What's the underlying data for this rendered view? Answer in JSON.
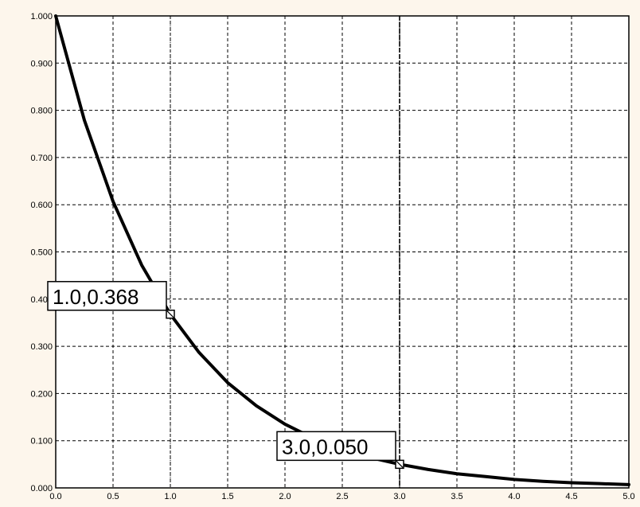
{
  "chart_data": {
    "type": "line",
    "title": "",
    "xlabel": "",
    "ylabel": "",
    "xlim": [
      0.0,
      5.0
    ],
    "ylim": [
      0.0,
      1.0
    ],
    "x_ticks": [
      "0.0",
      "0.5",
      "1.0",
      "1.5",
      "2.0",
      "2.5",
      "3.0",
      "3.5",
      "4.0",
      "4.5",
      "5.0"
    ],
    "y_ticks": [
      "0.000",
      "0.100",
      "0.200",
      "0.300",
      "0.400",
      "0.500",
      "0.600",
      "0.700",
      "0.800",
      "0.900",
      "1.000"
    ],
    "grid": true,
    "legend": "none",
    "series": [
      {
        "x": [
          0.0,
          0.25,
          0.5,
          0.75,
          1.0,
          1.25,
          1.5,
          1.75,
          2.0,
          2.25,
          2.5,
          2.75,
          3.0,
          3.25,
          3.5,
          3.75,
          4.0,
          4.25,
          4.5,
          4.75,
          5.0
        ],
        "y": [
          1.0,
          0.779,
          0.607,
          0.472,
          0.368,
          0.287,
          0.223,
          0.174,
          0.135,
          0.105,
          0.082,
          0.064,
          0.05,
          0.039,
          0.03,
          0.024,
          0.018,
          0.014,
          0.011,
          0.009,
          0.007
        ]
      }
    ],
    "annotations": [
      {
        "x": 1.0,
        "y": 0.368,
        "text": "1.0,0.368"
      },
      {
        "x": 3.0,
        "y": 0.05,
        "text": "3.0,0.050"
      }
    ],
    "colors": {
      "line": "#000000",
      "grid": "#000000",
      "background": "#ffffff",
      "frame_fill": "#fdf6ec"
    }
  }
}
